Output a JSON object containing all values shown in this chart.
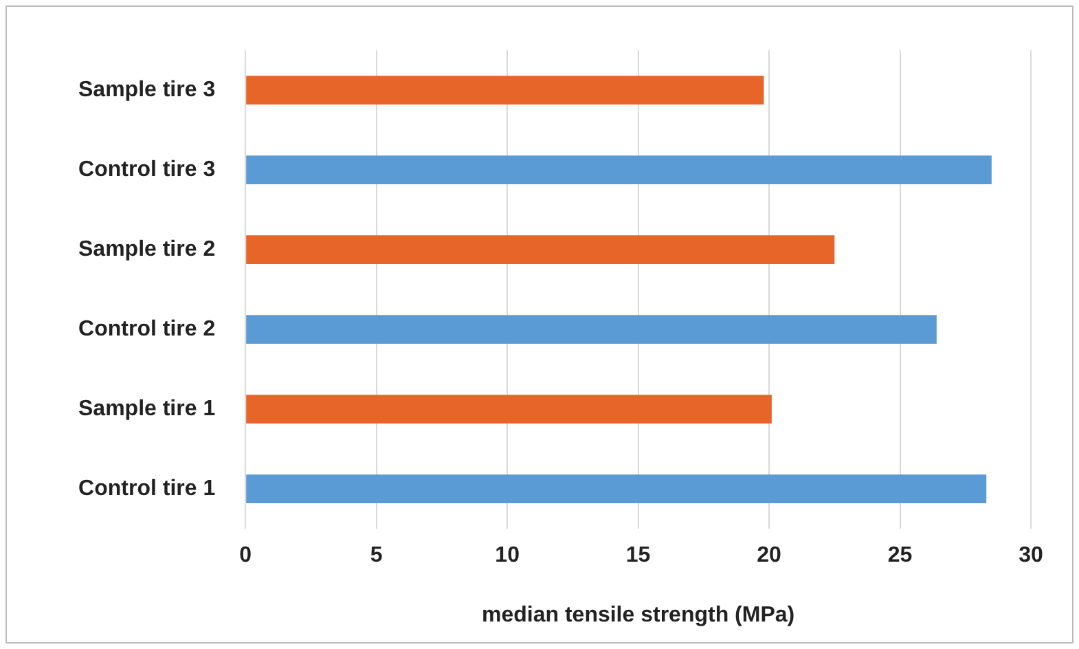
{
  "chart_data": {
    "type": "bar",
    "orientation": "horizontal",
    "xlabel": "median tensile strength (MPa)",
    "categories": [
      "Sample tire 3",
      "Control tire 3",
      "Sample tire 2",
      "Control tire 2",
      "Sample tire 1",
      "Control tire 1"
    ],
    "values": [
      19.8,
      28.5,
      22.5,
      26.4,
      20.1,
      28.3
    ],
    "colors": [
      "#e8652a",
      "#5b9bd5",
      "#e8652a",
      "#5b9bd5",
      "#e8652a",
      "#5b9bd5"
    ],
    "xlim": [
      0,
      30
    ],
    "xticks": [
      0,
      5,
      10,
      15,
      20,
      25,
      30
    ],
    "grid": "x",
    "legend": false
  }
}
